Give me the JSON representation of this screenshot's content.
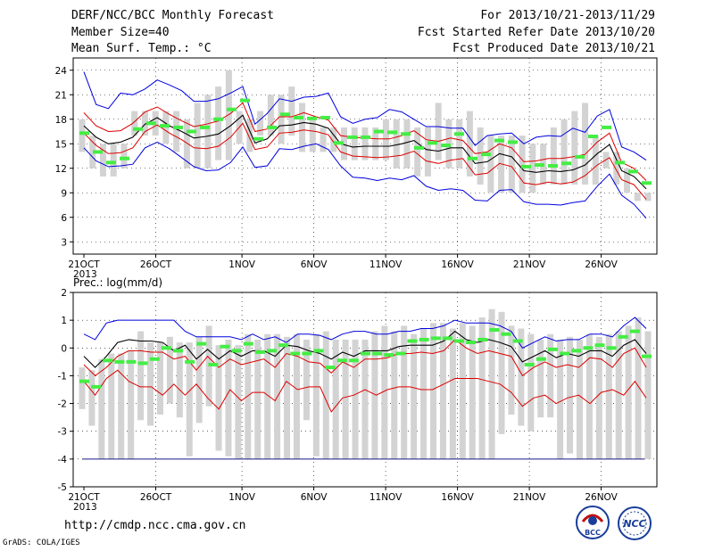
{
  "header": {
    "title": "DERF/NCC/BCC Monthly Forecast",
    "member_size": "Member Size=40",
    "variable": "Mean Surf. Temp.: °C",
    "period": "For 2013/10/21-2013/11/29",
    "fcst_started": "Fcst Started Refer Date 2013/10/20",
    "fcst_produced": "Fcst Produced Date 2013/10/21"
  },
  "footer": {
    "url": "http://cmdp.ncc.cma.gov.cn",
    "grads": "GrADS: COLA/IGES",
    "logo_left_text": "BCC",
    "logo_right_text": "NCC"
  },
  "colors": {
    "grey_bar": "#d3d3d3",
    "mean_marker": "#44ee44",
    "black_line": "#000000",
    "red_line": "#dd0000",
    "blue_line": "#0000dd"
  },
  "chart_data": [
    {
      "type": "line",
      "title": "",
      "ylabel": "Mean Surf. Temp.: °C",
      "x_tick_labels": [
        "21OCT",
        "26OCT",
        "1NOV",
        "6NOV",
        "11NOV",
        "16NOV",
        "21NOV",
        "26NOV"
      ],
      "x_tick_days": [
        0,
        5,
        11,
        16,
        21,
        26,
        31,
        36
      ],
      "year_label": "2013",
      "ylim": [
        1.5,
        25.5
      ],
      "yticks": [
        3,
        6,
        9,
        12,
        15,
        18,
        21,
        24
      ],
      "grid": true,
      "bar_min": [
        14,
        12,
        11,
        11,
        12,
        16,
        16,
        16,
        15,
        14,
        12,
        12,
        12,
        13,
        13,
        15,
        14,
        16,
        16,
        15,
        16,
        14,
        14,
        14,
        14,
        13,
        13,
        13,
        13,
        13,
        12,
        12,
        11,
        11,
        13,
        12,
        12,
        11,
        10,
        9,
        9,
        9,
        9,
        9,
        10,
        10,
        10,
        10,
        10,
        10,
        12,
        10,
        9,
        8,
        8
      ],
      "bar_max": [
        18,
        16,
        15,
        15,
        15,
        19,
        19,
        19,
        19,
        19,
        18,
        20,
        21,
        22,
        24,
        19,
        18,
        19,
        21,
        21,
        22,
        20,
        18,
        17,
        17,
        17,
        17,
        17,
        17,
        18,
        18,
        18,
        17,
        17,
        20,
        18,
        18,
        19,
        17,
        16,
        16,
        16,
        16,
        15,
        15,
        17,
        18,
        19,
        20,
        16,
        14,
        14,
        12,
        9,
        9
      ],
      "green": [
        16.3,
        14,
        12.7,
        13.2,
        16.8,
        17.5,
        17.2,
        17,
        16.5,
        17,
        18,
        19.2,
        20.3,
        15.6,
        17,
        18.6,
        18.2,
        18.1,
        18.2,
        15.1,
        15.8,
        15.8,
        16.5,
        16.4,
        16.2,
        14.5,
        15.1,
        14.8,
        16.2,
        13.2,
        13.7,
        15.4,
        15.2,
        12.2,
        12.4,
        12.3,
        12.6,
        13.4,
        15.9,
        17,
        12.7,
        11.6,
        10.2
      ],
      "black": [
        17.2,
        15.8,
        15,
        15.2,
        15.8,
        17.4,
        18.2,
        17.2,
        16.5,
        15.7,
        15.9,
        16.2,
        17.2,
        18.5,
        15.1,
        15.6,
        17.2,
        17.3,
        17.6,
        17.4,
        16.9,
        15,
        14.6,
        14.7,
        14.7,
        14.7,
        15,
        15.4,
        14.3,
        14.1,
        14.5,
        14.5,
        12.6,
        12.8,
        13.8,
        13.4,
        11.7,
        11.5,
        11.7,
        11.6,
        11.8,
        12.4,
        13.8,
        14.9,
        11.7,
        11,
        9.5
      ],
      "red_upper": [
        18.8,
        17.2,
        16.5,
        16.6,
        17.5,
        18.9,
        19.5,
        18.6,
        17.8,
        17.1,
        17.4,
        17.8,
        18.7,
        20,
        16.5,
        16.8,
        18.3,
        18.3,
        18.8,
        18.3,
        17.9,
        16,
        15.8,
        15.7,
        15.6,
        15.6,
        16,
        16.6,
        15.5,
        15.3,
        15.7,
        15.4,
        13.8,
        14,
        15,
        14.5,
        12.8,
        12.9,
        13.2,
        13.2,
        13.4,
        13.7,
        15.2,
        16.3,
        12.7,
        12,
        10.5
      ],
      "red_lower": [
        16.3,
        14.8,
        13.8,
        13.9,
        14.5,
        16.5,
        17.3,
        16.3,
        15.5,
        14.5,
        14.4,
        14.7,
        15.8,
        17.5,
        14.3,
        14.6,
        16.3,
        16.4,
        16.7,
        16.5,
        16.1,
        14,
        13.5,
        13.4,
        13.3,
        13.4,
        13.6,
        14.1,
        12.9,
        12.6,
        13,
        13.2,
        11.2,
        11.4,
        12.6,
        12.2,
        10.2,
        10,
        10.3,
        10.1,
        10.3,
        11.1,
        12.4,
        13.3,
        10.6,
        10,
        8.2
      ],
      "blue_upper": [
        23.8,
        19.8,
        19.3,
        21.2,
        21,
        21.7,
        22.8,
        22.2,
        21.5,
        20.2,
        20.2,
        20.5,
        21.2,
        22,
        17.4,
        18.7,
        20.5,
        20.2,
        20.7,
        20.8,
        21.2,
        18.3,
        17.5,
        18,
        18.2,
        19.2,
        18.9,
        18,
        17.1,
        17.1,
        16.9,
        16.9,
        14.8,
        16,
        16.2,
        16.3,
        15,
        15.8,
        16,
        15.9,
        16.9,
        16.4,
        18.4,
        19.2,
        14.6,
        14,
        13
      ],
      "blue_lower": [
        14.5,
        12.9,
        12.2,
        12.3,
        12.5,
        14.5,
        15.2,
        14.4,
        13.3,
        12.2,
        11.7,
        11.8,
        12.7,
        14.6,
        12.1,
        12.3,
        14.4,
        14.3,
        14.7,
        15,
        14.3,
        12.3,
        10.9,
        10.8,
        10.5,
        10.8,
        10.6,
        11.1,
        9.8,
        9.3,
        9.5,
        9.3,
        8.1,
        8,
        9.3,
        9.4,
        7.9,
        7.6,
        7.6,
        7.5,
        7.8,
        8,
        9.8,
        11.3,
        8.7,
        7.6,
        5.9
      ]
    },
    {
      "type": "line",
      "title": "",
      "ylabel": "Prec.: log(mm/d)",
      "x_tick_labels": [
        "21OCT",
        "26OCT",
        "1NOV",
        "6NOV",
        "11NOV",
        "16NOV",
        "21NOV",
        "26NOV"
      ],
      "x_tick_days": [
        0,
        5,
        11,
        16,
        21,
        26,
        31,
        36
      ],
      "year_label": "2013",
      "ylim": [
        -5,
        2
      ],
      "yticks": [
        -5,
        -4,
        -3,
        -2,
        -1,
        0,
        1,
        2
      ],
      "grid": true,
      "baseline": -4,
      "bar_min": [
        -2.2,
        -2.8,
        -4,
        -4,
        -4,
        -4,
        -2.6,
        -2.8,
        -2.4,
        -2,
        -2.5,
        -3.9,
        -2.7,
        -2.1,
        -3.7,
        -3.9,
        -4,
        -4,
        -4,
        -4,
        -4,
        -4,
        -4,
        -2.6,
        -3.9,
        -4,
        -4,
        -4,
        -4,
        -4,
        -4,
        -4,
        -4,
        -4,
        -4,
        -4,
        -4,
        -4,
        -4,
        -4,
        -4,
        -4,
        -4,
        -3.1,
        -2.4,
        -2.8,
        -3,
        -2.5,
        -2.5,
        -4,
        -3.8,
        -4,
        -4,
        -4,
        -4,
        -4,
        -4,
        -4,
        -4
      ],
      "bar_max": [
        -0.7,
        -0.8,
        -0.4,
        -0.2,
        -0.2,
        -0.1,
        0.6,
        0.2,
        0.2,
        0.4,
        0.2,
        0.2,
        0.4,
        0.8,
        0.1,
        0.3,
        0.1,
        0.5,
        0.3,
        0.5,
        0.5,
        0.4,
        0.5,
        0.3,
        0.5,
        0.6,
        0.3,
        0.3,
        0.3,
        0.3,
        0.6,
        0.8,
        0.6,
        0.8,
        0.5,
        0.7,
        0.9,
        0.9,
        0.7,
        0.9,
        0.8,
        1.1,
        1.4,
        1.3,
        0.8,
        0.7,
        0.5,
        0.3,
        0.5,
        0.3,
        0.4,
        0.3,
        0.5,
        0.4,
        0.5,
        0.6,
        0.8,
        1.1,
        0.6
      ],
      "green": [
        -1.2,
        -1.4,
        -0.45,
        -0.5,
        -0.5,
        -0.55,
        -0.4,
        0,
        -0.1,
        -0.5,
        0.15,
        -0.6,
        0.05,
        -0.1,
        0.15,
        -0.15,
        -0.1,
        0.1,
        -0.2,
        -0.2,
        -0.1,
        -0.7,
        -0.45,
        -0.45,
        -0.2,
        -0.2,
        -0.25,
        -0.2,
        0.25,
        0.3,
        0.35,
        0.35,
        0.25,
        0.2,
        0.3,
        0.65,
        0.5,
        0.25,
        -0.6,
        -0.4,
        -0.05,
        -0.2,
        -0.1,
        0,
        0.1,
        0,
        0.4,
        0.6,
        -0.3
      ],
      "black": [
        -0.3,
        -0.7,
        -0.3,
        0.2,
        0.3,
        0.25,
        0.25,
        0.2,
        -0.1,
        0.1,
        -0.4,
        -0.05,
        -0.4,
        -0.1,
        -0.3,
        -0.1,
        -0.1,
        -0.3,
        0.1,
        0.05,
        -0.1,
        -0.2,
        -0.4,
        -0.15,
        -0.3,
        -0.1,
        -0.1,
        -0.1,
        0.05,
        0.1,
        0.1,
        0.1,
        0.25,
        0.6,
        0.3,
        0.2,
        0.3,
        0.2,
        0.05,
        -0.5,
        -0.3,
        -0.1,
        -0.35,
        -0.2,
        -0.3,
        -0.1,
        -0.1,
        -0.3,
        0.1,
        0.3,
        -0.2
      ],
      "red_upper": [
        -0.6,
        -1,
        -0.7,
        -0.3,
        -0.1,
        -0.1,
        -0.15,
        -0.15,
        -0.4,
        -0.3,
        -0.8,
        -0.3,
        -0.7,
        -0.4,
        -0.6,
        -0.5,
        -0.4,
        -0.7,
        -0.2,
        -0.3,
        -0.5,
        -0.55,
        -0.9,
        -0.5,
        -0.7,
        -0.4,
        -0.4,
        -0.35,
        -0.2,
        -0.2,
        -0.15,
        -0.2,
        -0.1,
        0.3,
        0,
        -0.2,
        -0.1,
        -0.2,
        -0.3,
        -1,
        -0.7,
        -0.5,
        -0.7,
        -0.6,
        -0.7,
        -0.35,
        -0.4,
        -0.7,
        -0.2,
        0,
        -0.7
      ],
      "red_lower": [
        -1.2,
        -1.7,
        -1.1,
        -0.8,
        -1.2,
        -1.4,
        -1.4,
        -1.7,
        -1.3,
        -1.7,
        -1.3,
        -1.8,
        -2.2,
        -1.5,
        -1.9,
        -1.6,
        -1.6,
        -1.9,
        -1.2,
        -1.5,
        -1.4,
        -1.4,
        -2.3,
        -1.8,
        -1.7,
        -1.5,
        -1.7,
        -1.5,
        -1.4,
        -1.4,
        -1.5,
        -1.5,
        -1.3,
        -1.1,
        -1.1,
        -1.1,
        -1.2,
        -1.3,
        -1.6,
        -2.1,
        -1.8,
        -1.7,
        -2,
        -1.8,
        -1.7,
        -2,
        -1.6,
        -1.5,
        -1.7,
        -1.2,
        -1.8
      ],
      "blue_upper": [
        0.5,
        0.3,
        0.9,
        1,
        1,
        1,
        1,
        1,
        1,
        0.6,
        0.4,
        0.4,
        0.4,
        0.4,
        0.3,
        0.5,
        0.3,
        0.4,
        0.2,
        0.5,
        0.5,
        0.45,
        0.3,
        0.5,
        0.6,
        0.6,
        0.5,
        0.5,
        0.6,
        0.6,
        0.7,
        0.7,
        0.8,
        1,
        0.9,
        0.9,
        0.9,
        0.8,
        0.6,
        0,
        0.2,
        0.4,
        0.25,
        0.3,
        0.3,
        0.5,
        0.5,
        0.4,
        0.8,
        1.1,
        0.7
      ]
    }
  ]
}
